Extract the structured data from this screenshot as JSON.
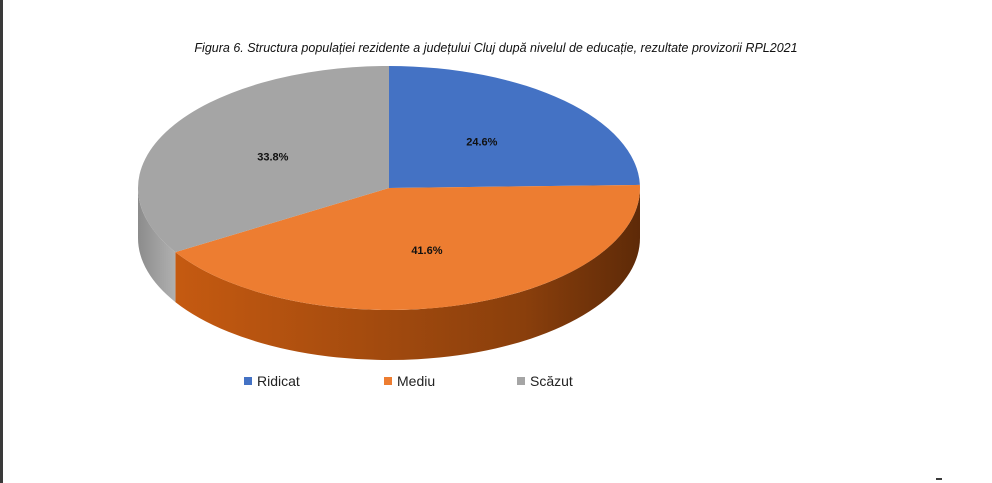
{
  "chart_data": {
    "type": "pie",
    "title": "Figura 6. Structura populației rezidente a județului Cluj după nivelul de educație, rezultate provizorii RPL2021",
    "categories": [
      "Ridicat",
      "Mediu",
      "Scăzut"
    ],
    "values": [
      24.6,
      41.6,
      33.8
    ],
    "value_labels": [
      "24.6%",
      "41.6%",
      "33.8%"
    ],
    "colors": [
      "#4472C4",
      "#ED7D31",
      "#A5A5A5"
    ],
    "style": "3d",
    "legend_position": "bottom"
  }
}
